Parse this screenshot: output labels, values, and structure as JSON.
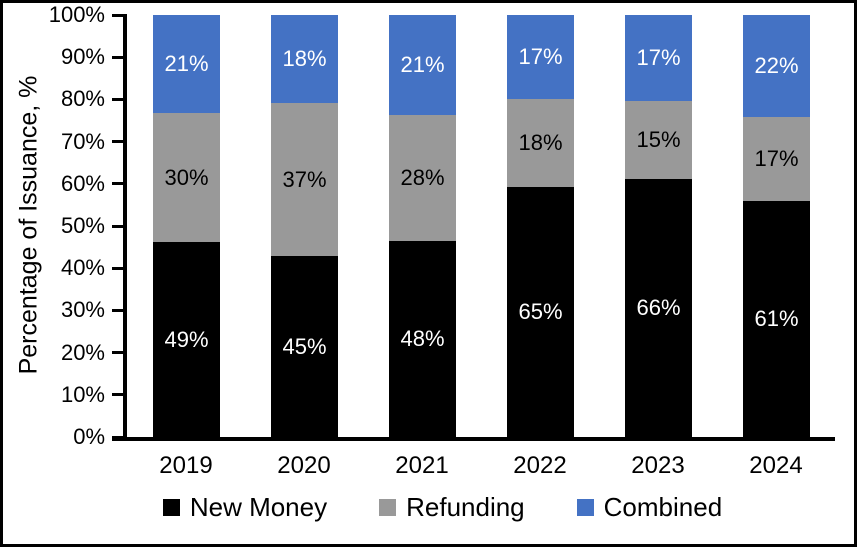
{
  "window": {
    "background": "#FFFFFF",
    "border_color": "#000000"
  },
  "chart_data": {
    "type": "bar",
    "stacked": true,
    "title": "",
    "xlabel": "",
    "ylabel": "Percentage of Issuance, %",
    "categories": [
      "2019",
      "2020",
      "2021",
      "2022",
      "2023",
      "2024"
    ],
    "series": [
      {
        "name": "New Money",
        "color": "#000000",
        "label_color": "#FFFFFF",
        "values": [
          49,
          45,
          48,
          65,
          66,
          61
        ]
      },
      {
        "name": "Refunding",
        "color": "#999999",
        "label_color": "#000000",
        "values": [
          30,
          37,
          28,
          18,
          15,
          17
        ]
      },
      {
        "name": "Combined",
        "color": "#4472C4",
        "label_color": "#FFFFFF",
        "values": [
          21,
          18,
          21,
          17,
          17,
          22
        ]
      }
    ],
    "data_label_suffix": "%",
    "y_ticks": [
      "0%",
      "10%",
      "20%",
      "30%",
      "40%",
      "50%",
      "60%",
      "70%",
      "80%",
      "90%",
      "100%"
    ],
    "ylim": [
      0,
      100
    ],
    "grid": false,
    "legend_position": "bottom",
    "axis_color": "#000000"
  }
}
